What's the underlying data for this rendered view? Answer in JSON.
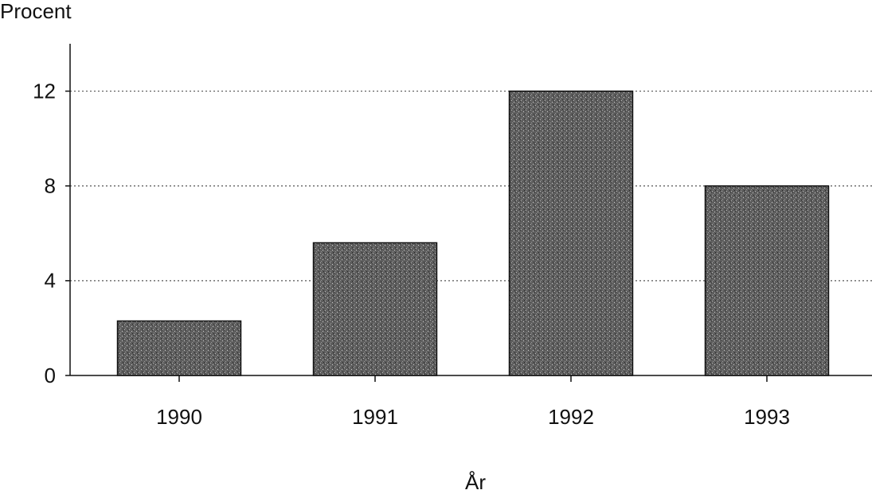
{
  "chart_data": {
    "type": "bar",
    "y_label": "Procent",
    "x_label": "År",
    "categories": [
      "1990",
      "1991",
      "1992",
      "1993"
    ],
    "values": [
      2.3,
      5.6,
      12,
      8
    ],
    "color": "#6b6b6b",
    "ylim": [
      0,
      14
    ],
    "yticks": [
      0,
      4,
      8,
      12
    ],
    "grid": true
  }
}
